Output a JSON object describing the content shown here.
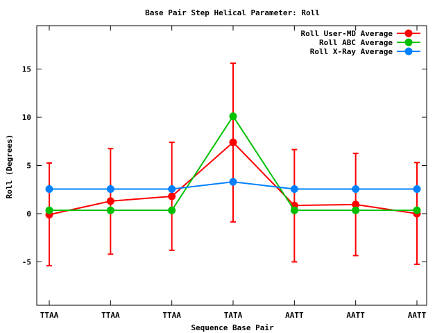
{
  "chart_data": {
    "type": "line",
    "title": "Base Pair Step Helical Parameter: Roll",
    "xlabel": "Sequence Base Pair",
    "ylabel": "Roll (Degrees)",
    "categories": [
      "TTAA",
      "TTAA",
      "TTAA",
      "TATA",
      "AATT",
      "AATT",
      "AATT"
    ],
    "ylim": [
      -9.5,
      19.5
    ],
    "yticks": [
      -5,
      0,
      5,
      10,
      15
    ],
    "grid": false,
    "legend_position": "top-right",
    "series": [
      {
        "name": "Roll User-MD Average",
        "color": "#ff0000",
        "values": [
          -0.1,
          1.3,
          1.8,
          7.4,
          0.85,
          0.95,
          0.0
        ],
        "error_low": [
          -5.4,
          -4.2,
          -3.8,
          -0.85,
          -5.0,
          -4.35,
          -5.25
        ],
        "error_high": [
          5.25,
          6.75,
          7.4,
          15.6,
          6.65,
          6.25,
          5.3
        ]
      },
      {
        "name": "Roll ABC Average",
        "color": "#00c000",
        "values": [
          0.35,
          0.35,
          0.35,
          10.1,
          0.35,
          0.35,
          0.35
        ]
      },
      {
        "name": "Roll X-Ray Average",
        "color": "#0080ff",
        "values": [
          2.55,
          2.55,
          2.55,
          3.3,
          2.55,
          2.55,
          2.55
        ]
      }
    ]
  }
}
